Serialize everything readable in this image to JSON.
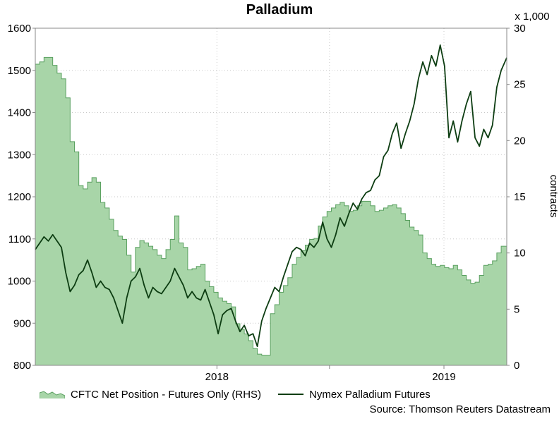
{
  "chart_data": {
    "type": "line",
    "title": "Palladium",
    "left_axis": {
      "ylim": [
        800,
        1600
      ],
      "ticks": [
        800,
        900,
        1000,
        1100,
        1200,
        1300,
        1400,
        1500,
        1600
      ]
    },
    "right_axis": {
      "ylim": [
        0,
        30
      ],
      "ticks": [
        0,
        5,
        10,
        15,
        20,
        25,
        30
      ],
      "label": "contracts",
      "multiplier": "x 1,000"
    },
    "x_axis": {
      "range": [
        "2017-03-15",
        "2019-04-12"
      ],
      "tick_labels": [
        {
          "date": "2018-01-01",
          "label": "2018"
        },
        {
          "date": "2019-01-01",
          "label": "2019"
        }
      ],
      "minor_ticks": [
        "2018-07-01"
      ]
    },
    "grid": true,
    "legend_position": "bottom",
    "series": [
      {
        "name": "CFTC Net Position - Futures Only (RHS)",
        "axis": "right",
        "style": "area",
        "color": "#a8d5a8",
        "points": [
          [
            "2017-03-15",
            26.8
          ],
          [
            "2017-03-22",
            27.0
          ],
          [
            "2017-03-29",
            27.4
          ],
          [
            "2017-04-05",
            27.4
          ],
          [
            "2017-04-12",
            26.7
          ],
          [
            "2017-04-19",
            26.0
          ],
          [
            "2017-04-26",
            25.5
          ],
          [
            "2017-05-03",
            23.8
          ],
          [
            "2017-05-10",
            19.9
          ],
          [
            "2017-05-17",
            19.0
          ],
          [
            "2017-05-24",
            16.0
          ],
          [
            "2017-05-31",
            15.7
          ],
          [
            "2017-06-07",
            16.3
          ],
          [
            "2017-06-14",
            16.7
          ],
          [
            "2017-06-21",
            16.3
          ],
          [
            "2017-06-28",
            14.5
          ],
          [
            "2017-07-05",
            14.0
          ],
          [
            "2017-07-12",
            13.0
          ],
          [
            "2017-07-19",
            12.0
          ],
          [
            "2017-07-26",
            11.5
          ],
          [
            "2017-08-02",
            11.2
          ],
          [
            "2017-08-09",
            9.8
          ],
          [
            "2017-08-16",
            8.3
          ],
          [
            "2017-08-23",
            10.5
          ],
          [
            "2017-08-30",
            11.1
          ],
          [
            "2017-09-06",
            10.9
          ],
          [
            "2017-09-13",
            10.6
          ],
          [
            "2017-09-20",
            10.3
          ],
          [
            "2017-09-27",
            9.8
          ],
          [
            "2017-10-04",
            9.5
          ],
          [
            "2017-10-11",
            10.3
          ],
          [
            "2017-10-18",
            11.2
          ],
          [
            "2017-10-25",
            13.3
          ],
          [
            "2017-11-01",
            10.9
          ],
          [
            "2017-11-08",
            10.5
          ],
          [
            "2017-11-15",
            8.5
          ],
          [
            "2017-11-22",
            8.6
          ],
          [
            "2017-11-29",
            8.8
          ],
          [
            "2017-12-06",
            9.0
          ],
          [
            "2017-12-13",
            7.5
          ],
          [
            "2017-12-20",
            7.0
          ],
          [
            "2017-12-27",
            6.5
          ],
          [
            "2018-01-03",
            6.0
          ],
          [
            "2018-01-10",
            5.7
          ],
          [
            "2018-01-17",
            5.5
          ],
          [
            "2018-01-24",
            5.2
          ],
          [
            "2018-01-31",
            3.7
          ],
          [
            "2018-02-07",
            3.2
          ],
          [
            "2018-02-14",
            2.8
          ],
          [
            "2018-02-21",
            2.2
          ],
          [
            "2018-02-28",
            1.5
          ],
          [
            "2018-03-07",
            1.0
          ],
          [
            "2018-03-14",
            0.9
          ],
          [
            "2018-03-21",
            0.9
          ],
          [
            "2018-03-28",
            4.6
          ],
          [
            "2018-04-04",
            5.4
          ],
          [
            "2018-04-11",
            6.5
          ],
          [
            "2018-04-18",
            7.1
          ],
          [
            "2018-04-25",
            7.8
          ],
          [
            "2018-05-02",
            9.0
          ],
          [
            "2018-05-09",
            9.6
          ],
          [
            "2018-05-16",
            10.2
          ],
          [
            "2018-05-23",
            10.7
          ],
          [
            "2018-05-30",
            11.2
          ],
          [
            "2018-06-06",
            11.3
          ],
          [
            "2018-06-13",
            12.4
          ],
          [
            "2018-06-20",
            13.2
          ],
          [
            "2018-06-27",
            13.7
          ],
          [
            "2018-07-04",
            14.0
          ],
          [
            "2018-07-11",
            14.3
          ],
          [
            "2018-07-18",
            14.5
          ],
          [
            "2018-07-25",
            14.2
          ],
          [
            "2018-08-01",
            13.7
          ],
          [
            "2018-08-08",
            13.8
          ],
          [
            "2018-08-15",
            14.2
          ],
          [
            "2018-08-22",
            14.6
          ],
          [
            "2018-08-29",
            14.6
          ],
          [
            "2018-09-05",
            14.2
          ],
          [
            "2018-09-12",
            13.7
          ],
          [
            "2018-09-19",
            13.8
          ],
          [
            "2018-09-26",
            14.0
          ],
          [
            "2018-10-03",
            14.2
          ],
          [
            "2018-10-10",
            14.3
          ],
          [
            "2018-10-17",
            14.0
          ],
          [
            "2018-10-24",
            13.5
          ],
          [
            "2018-10-31",
            12.9
          ],
          [
            "2018-11-07",
            12.3
          ],
          [
            "2018-11-14",
            12.0
          ],
          [
            "2018-11-21",
            11.6
          ],
          [
            "2018-11-28",
            10.0
          ],
          [
            "2018-12-05",
            9.5
          ],
          [
            "2018-12-12",
            9.0
          ],
          [
            "2018-12-19",
            8.8
          ],
          [
            "2018-12-26",
            8.9
          ],
          [
            "2019-01-02",
            8.7
          ],
          [
            "2019-01-09",
            8.6
          ],
          [
            "2019-01-16",
            8.9
          ],
          [
            "2019-01-23",
            8.5
          ],
          [
            "2019-01-30",
            8.0
          ],
          [
            "2019-02-06",
            7.6
          ],
          [
            "2019-02-13",
            7.3
          ],
          [
            "2019-02-20",
            7.4
          ],
          [
            "2019-02-27",
            8.0
          ],
          [
            "2019-03-06",
            8.9
          ],
          [
            "2019-03-13",
            9.0
          ],
          [
            "2019-03-20",
            9.3
          ],
          [
            "2019-03-27",
            10.0
          ],
          [
            "2019-04-03",
            10.6
          ],
          [
            "2019-04-12",
            10.8
          ]
        ]
      },
      {
        "name": "Nymex Palladium Futures",
        "axis": "left",
        "style": "line",
        "color": "#0d3d12",
        "points": [
          [
            "2017-03-15",
            1075
          ],
          [
            "2017-03-22",
            1090
          ],
          [
            "2017-03-29",
            1105
          ],
          [
            "2017-04-05",
            1095
          ],
          [
            "2017-04-12",
            1110
          ],
          [
            "2017-04-19",
            1095
          ],
          [
            "2017-04-26",
            1080
          ],
          [
            "2017-05-03",
            1020
          ],
          [
            "2017-05-10",
            975
          ],
          [
            "2017-05-17",
            990
          ],
          [
            "2017-05-24",
            1015
          ],
          [
            "2017-05-31",
            1025
          ],
          [
            "2017-06-07",
            1050
          ],
          [
            "2017-06-14",
            1020
          ],
          [
            "2017-06-21",
            985
          ],
          [
            "2017-06-28",
            1000
          ],
          [
            "2017-07-05",
            985
          ],
          [
            "2017-07-12",
            980
          ],
          [
            "2017-07-19",
            960
          ],
          [
            "2017-07-26",
            930
          ],
          [
            "2017-08-02",
            900
          ],
          [
            "2017-08-09",
            960
          ],
          [
            "2017-08-16",
            1000
          ],
          [
            "2017-08-23",
            1010
          ],
          [
            "2017-08-30",
            1030
          ],
          [
            "2017-09-06",
            990
          ],
          [
            "2017-09-13",
            960
          ],
          [
            "2017-09-20",
            985
          ],
          [
            "2017-09-27",
            975
          ],
          [
            "2017-10-04",
            970
          ],
          [
            "2017-10-11",
            985
          ],
          [
            "2017-10-18",
            1000
          ],
          [
            "2017-10-25",
            1030
          ],
          [
            "2017-11-01",
            1010
          ],
          [
            "2017-11-08",
            990
          ],
          [
            "2017-11-15",
            960
          ],
          [
            "2017-11-22",
            975
          ],
          [
            "2017-11-29",
            960
          ],
          [
            "2017-12-06",
            955
          ],
          [
            "2017-12-13",
            980
          ],
          [
            "2017-12-20",
            950
          ],
          [
            "2017-12-27",
            920
          ],
          [
            "2018-01-03",
            875
          ],
          [
            "2018-01-10",
            920
          ],
          [
            "2018-01-17",
            930
          ],
          [
            "2018-01-24",
            935
          ],
          [
            "2018-01-31",
            905
          ],
          [
            "2018-02-07",
            880
          ],
          [
            "2018-02-14",
            895
          ],
          [
            "2018-02-21",
            870
          ],
          [
            "2018-02-28",
            875
          ],
          [
            "2018-03-07",
            845
          ],
          [
            "2018-03-14",
            905
          ],
          [
            "2018-03-21",
            935
          ],
          [
            "2018-03-28",
            960
          ],
          [
            "2018-04-04",
            985
          ],
          [
            "2018-04-11",
            975
          ],
          [
            "2018-04-18",
            1010
          ],
          [
            "2018-04-25",
            1040
          ],
          [
            "2018-05-02",
            1070
          ],
          [
            "2018-05-09",
            1080
          ],
          [
            "2018-05-16",
            1075
          ],
          [
            "2018-05-23",
            1060
          ],
          [
            "2018-05-30",
            1090
          ],
          [
            "2018-06-06",
            1080
          ],
          [
            "2018-06-13",
            1095
          ],
          [
            "2018-06-20",
            1140
          ],
          [
            "2018-06-27",
            1100
          ],
          [
            "2018-07-04",
            1080
          ],
          [
            "2018-07-11",
            1110
          ],
          [
            "2018-07-18",
            1150
          ],
          [
            "2018-07-25",
            1130
          ],
          [
            "2018-08-01",
            1160
          ],
          [
            "2018-08-08",
            1185
          ],
          [
            "2018-08-15",
            1170
          ],
          [
            "2018-08-22",
            1195
          ],
          [
            "2018-08-29",
            1210
          ],
          [
            "2018-09-05",
            1215
          ],
          [
            "2018-09-12",
            1240
          ],
          [
            "2018-09-19",
            1250
          ],
          [
            "2018-09-26",
            1295
          ],
          [
            "2018-10-03",
            1310
          ],
          [
            "2018-10-10",
            1350
          ],
          [
            "2018-10-17",
            1375
          ],
          [
            "2018-10-24",
            1315
          ],
          [
            "2018-10-31",
            1350
          ],
          [
            "2018-11-07",
            1380
          ],
          [
            "2018-11-14",
            1420
          ],
          [
            "2018-11-21",
            1480
          ],
          [
            "2018-11-28",
            1520
          ],
          [
            "2018-12-05",
            1490
          ],
          [
            "2018-12-12",
            1535
          ],
          [
            "2018-12-19",
            1510
          ],
          [
            "2018-12-26",
            1560
          ],
          [
            "2019-01-02",
            1510
          ],
          [
            "2019-01-09",
            1340
          ],
          [
            "2019-01-16",
            1380
          ],
          [
            "2019-01-23",
            1330
          ],
          [
            "2019-01-30",
            1380
          ],
          [
            "2019-02-06",
            1420
          ],
          [
            "2019-02-13",
            1450
          ],
          [
            "2019-02-20",
            1340
          ],
          [
            "2019-02-27",
            1320
          ],
          [
            "2019-03-06",
            1360
          ],
          [
            "2019-03-13",
            1340
          ],
          [
            "2019-03-20",
            1370
          ],
          [
            "2019-03-27",
            1460
          ],
          [
            "2019-04-03",
            1500
          ],
          [
            "2019-04-12",
            1530
          ]
        ]
      }
    ]
  },
  "legend": {
    "area_label": "CFTC Net Position - Futures Only (RHS)",
    "line_label": "Nymex Palladium Futures"
  },
  "source": "Source: Thomson Reuters Datastream",
  "colors": {
    "area_fill": "#a8d5a8",
    "area_edge": "#5aa060",
    "line": "#0d3d12",
    "grid": "#c8c8c8"
  }
}
